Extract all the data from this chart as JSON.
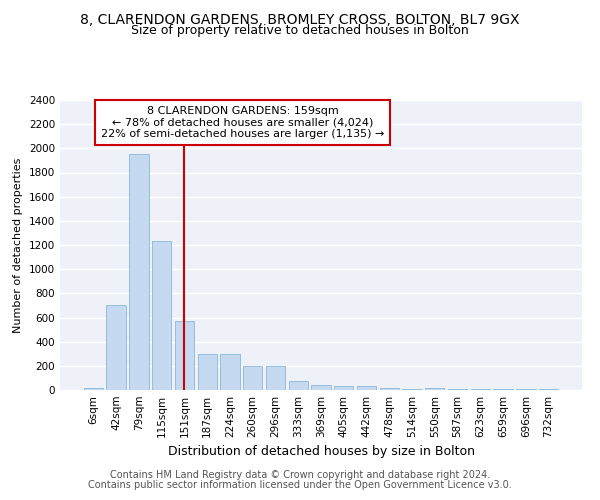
{
  "title1": "8, CLARENDON GARDENS, BROMLEY CROSS, BOLTON, BL7 9GX",
  "title2": "Size of property relative to detached houses in Bolton",
  "xlabel": "Distribution of detached houses by size in Bolton",
  "ylabel": "Number of detached properties",
  "categories": [
    "6sqm",
    "42sqm",
    "79sqm",
    "115sqm",
    "151sqm",
    "187sqm",
    "224sqm",
    "260sqm",
    "296sqm",
    "333sqm",
    "369sqm",
    "405sqm",
    "442sqm",
    "478sqm",
    "514sqm",
    "550sqm",
    "587sqm",
    "623sqm",
    "659sqm",
    "696sqm",
    "732sqm"
  ],
  "values": [
    15,
    700,
    1950,
    1230,
    570,
    300,
    300,
    200,
    200,
    75,
    45,
    35,
    30,
    15,
    5,
    15,
    5,
    5,
    5,
    5,
    10
  ],
  "bar_color": "#c5d9f0",
  "bar_edge_color": "#7aafd4",
  "bar_width": 0.85,
  "vline_x": 4.0,
  "vline_color": "#cc0000",
  "annotation_text": "8 CLARENDON GARDENS: 159sqm\n← 78% of detached houses are smaller (4,024)\n22% of semi-detached houses are larger (1,135) →",
  "annotation_box_color": "#cc0000",
  "ylim": [
    0,
    2400
  ],
  "yticks": [
    0,
    200,
    400,
    600,
    800,
    1000,
    1200,
    1400,
    1600,
    1800,
    2000,
    2200,
    2400
  ],
  "footer1": "Contains HM Land Registry data © Crown copyright and database right 2024.",
  "footer2": "Contains public sector information licensed under the Open Government Licence v3.0.",
  "bg_color": "#eef2f8",
  "grid_color": "#ffffff",
  "title1_fontsize": 10,
  "title2_fontsize": 9,
  "xlabel_fontsize": 9,
  "ylabel_fontsize": 8,
  "tick_fontsize": 7.5,
  "annot_fontsize": 8,
  "footer_fontsize": 7
}
